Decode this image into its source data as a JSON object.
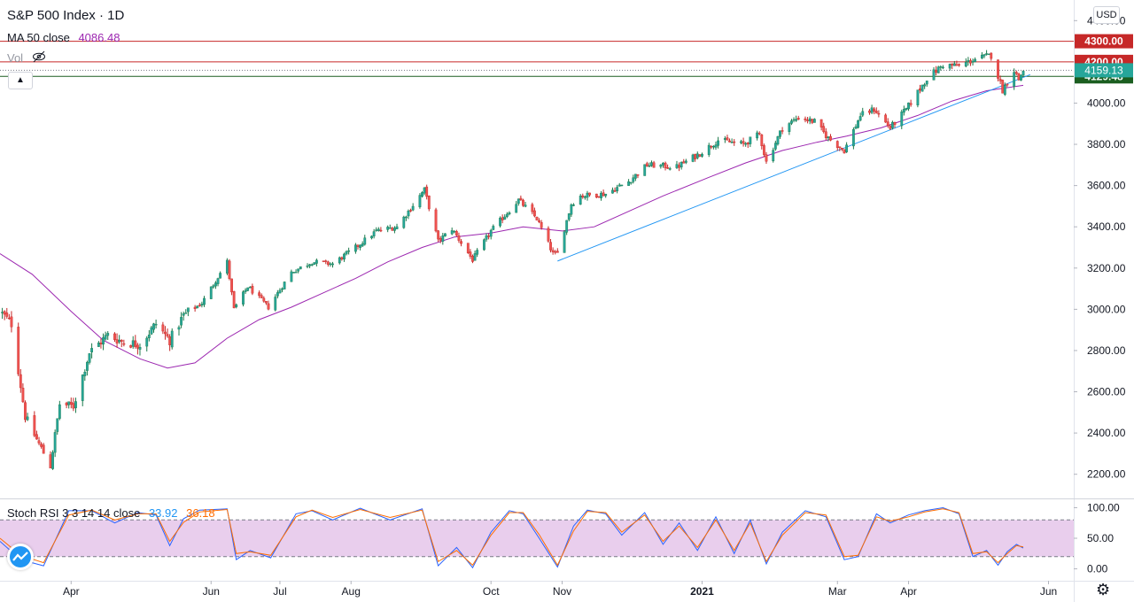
{
  "header": {
    "title": "S&P 500 Index · 1D",
    "ma_label": "MA 50 close",
    "ma_value": "4086.48",
    "vol_label": "Vol",
    "currency": "USD"
  },
  "stoch": {
    "label": "Stoch RSI 3 3 14 14 close",
    "k_value": "33.92",
    "d_value": "36.18"
  },
  "colors": {
    "up": "#26a69a",
    "down": "#ef5350",
    "ma": "#9c27b0",
    "trendline": "#2196f3",
    "hline_red": "#c62828",
    "hline_green": "#1b5e20",
    "last_price": "#26a69a",
    "stoch_k": "#2962ff",
    "stoch_d": "#ff6d00",
    "stoch_band": "#e1bee7"
  },
  "icons": [
    "eye-off-icon",
    "chevron-up-icon",
    "tradingview-logo-icon",
    "settings-gear-icon"
  ],
  "chart_data": [
    {
      "type": "candlestick",
      "title": "S&P 500 Index · 1D",
      "y_ticks": [
        2200,
        2400,
        2600,
        2800,
        3000,
        3200,
        3400,
        3600,
        3800,
        4000,
        4200,
        4400
      ],
      "y_tick_labels": [
        "2200.00",
        "2400.00",
        "2600.00",
        "2800.00",
        "3000.00",
        "3200.00",
        "3400.00",
        "3600.00",
        "3800.00",
        "4000.00",
        "4200.00",
        "4400.00"
      ],
      "ylim": [
        2130,
        4500
      ],
      "x_range": [
        "2020-03-01",
        "2021-06-12"
      ],
      "x_ticks": [
        {
          "date": "2020-04-01",
          "label": "Apr"
        },
        {
          "date": "2020-06-01",
          "label": "Jun"
        },
        {
          "date": "2020-07-01",
          "label": "Jul"
        },
        {
          "date": "2020-08-01",
          "label": "Aug"
        },
        {
          "date": "2020-10-01",
          "label": "Oct"
        },
        {
          "date": "2020-11-01",
          "label": "Nov"
        },
        {
          "date": "2021-01-01",
          "label": "2021"
        },
        {
          "date": "2021-03-01",
          "label": "Mar"
        },
        {
          "date": "2021-04-01",
          "label": "Apr"
        },
        {
          "date": "2021-06-01",
          "label": "Jun"
        }
      ],
      "price_path": [
        [
          "2020-03-01",
          2990
        ],
        [
          "2020-03-06",
          2930
        ],
        [
          "2020-03-12",
          2480
        ],
        [
          "2020-03-16",
          2390
        ],
        [
          "2020-03-23",
          2240
        ],
        [
          "2020-03-27",
          2540
        ],
        [
          "2020-04-02",
          2530
        ],
        [
          "2020-04-09",
          2790
        ],
        [
          "2020-04-17",
          2875
        ],
        [
          "2020-04-24",
          2840
        ],
        [
          "2020-05-01",
          2830
        ],
        [
          "2020-05-08",
          2930
        ],
        [
          "2020-05-14",
          2850
        ],
        [
          "2020-05-20",
          2970
        ],
        [
          "2020-05-28",
          3030
        ],
        [
          "2020-06-08",
          3230
        ],
        [
          "2020-06-11",
          3000
        ],
        [
          "2020-06-17",
          3110
        ],
        [
          "2020-06-26",
          3010
        ],
        [
          "2020-07-06",
          3180
        ],
        [
          "2020-07-15",
          3230
        ],
        [
          "2020-07-24",
          3220
        ],
        [
          "2020-08-03",
          3300
        ],
        [
          "2020-08-12",
          3380
        ],
        [
          "2020-08-21",
          3400
        ],
        [
          "2020-09-02",
          3580
        ],
        [
          "2020-09-08",
          3330
        ],
        [
          "2020-09-14",
          3390
        ],
        [
          "2020-09-23",
          3240
        ],
        [
          "2020-10-01",
          3380
        ],
        [
          "2020-10-09",
          3480
        ],
        [
          "2020-10-13",
          3530
        ],
        [
          "2020-10-21",
          3440
        ],
        [
          "2020-10-28",
          3270
        ],
        [
          "2020-10-30",
          3270
        ],
        [
          "2020-11-05",
          3510
        ],
        [
          "2020-11-09",
          3550
        ],
        [
          "2020-11-20",
          3560
        ],
        [
          "2020-11-30",
          3620
        ],
        [
          "2020-12-08",
          3700
        ],
        [
          "2020-12-21",
          3690
        ],
        [
          "2020-12-31",
          3756
        ],
        [
          "2021-01-08",
          3820
        ],
        [
          "2021-01-19",
          3800
        ],
        [
          "2021-01-26",
          3850
        ],
        [
          "2021-01-29",
          3714
        ],
        [
          "2021-02-05",
          3880
        ],
        [
          "2021-02-12",
          3930
        ],
        [
          "2021-02-19",
          3910
        ],
        [
          "2021-02-25",
          3830
        ],
        [
          "2021-03-04",
          3770
        ],
        [
          "2021-03-11",
          3940
        ],
        [
          "2021-03-17",
          3970
        ],
        [
          "2021-03-24",
          3880
        ],
        [
          "2021-03-31",
          3970
        ],
        [
          "2021-04-09",
          4120
        ],
        [
          "2021-04-16",
          4185
        ],
        [
          "2021-04-23",
          4180
        ],
        [
          "2021-04-29",
          4210
        ],
        [
          "2021-05-07",
          4232
        ],
        [
          "2021-05-12",
          4063
        ],
        [
          "2021-05-17",
          4160
        ],
        [
          "2021-05-19",
          4115
        ],
        [
          "2021-05-21",
          4159
        ]
      ],
      "ma50": [
        [
          "2020-03-01",
          3270
        ],
        [
          "2020-03-15",
          3170
        ],
        [
          "2020-04-01",
          2990
        ],
        [
          "2020-04-15",
          2850
        ],
        [
          "2020-05-01",
          2760
        ],
        [
          "2020-05-13",
          2715
        ],
        [
          "2020-05-25",
          2740
        ],
        [
          "2020-06-08",
          2860
        ],
        [
          "2020-06-22",
          2950
        ],
        [
          "2020-07-06",
          3010
        ],
        [
          "2020-07-20",
          3080
        ],
        [
          "2020-08-03",
          3150
        ],
        [
          "2020-08-17",
          3230
        ],
        [
          "2020-09-01",
          3300
        ],
        [
          "2020-09-15",
          3350
        ],
        [
          "2020-10-01",
          3370
        ],
        [
          "2020-10-15",
          3400
        ],
        [
          "2020-11-01",
          3380
        ],
        [
          "2020-11-15",
          3400
        ],
        [
          "2020-12-01",
          3480
        ],
        [
          "2020-12-15",
          3550
        ],
        [
          "2021-01-04",
          3640
        ],
        [
          "2021-01-20",
          3710
        ],
        [
          "2021-02-05",
          3770
        ],
        [
          "2021-02-20",
          3810
        ],
        [
          "2021-03-05",
          3840
        ],
        [
          "2021-03-20",
          3880
        ],
        [
          "2021-04-05",
          3940
        ],
        [
          "2021-04-20",
          4010
        ],
        [
          "2021-05-05",
          4060
        ],
        [
          "2021-05-21",
          4086
        ]
      ],
      "trendline": [
        [
          "2020-10-30",
          3234
        ],
        [
          "2021-05-24",
          4138
        ]
      ],
      "horizontal_levels": [
        {
          "value": 4300.0,
          "label": "4300.00",
          "style": "solid",
          "color": "#c62828"
        },
        {
          "value": 4200.0,
          "label": "4200.00",
          "style": "solid",
          "color": "#c62828"
        },
        {
          "value": 4129.48,
          "label": "4129.48",
          "style": "solid",
          "color": "#1b5e20"
        }
      ],
      "last_price": {
        "value": 4159.13,
        "label": "4159.13"
      },
      "indicators": [
        {
          "name": "MA 50 close",
          "value": 4086.48
        }
      ]
    },
    {
      "type": "line",
      "title": "Stoch RSI 3 3 14 14 close",
      "y_ticks": [
        0,
        50,
        100
      ],
      "y_tick_labels": [
        "0.00",
        "50.00",
        "100.00"
      ],
      "band": [
        20,
        80
      ],
      "ylim": [
        -5,
        105
      ],
      "series": [
        {
          "name": "K",
          "values": [
            [
              "2020-03-01",
              45
            ],
            [
              "2020-03-10",
              15
            ],
            [
              "2020-03-20",
              5
            ],
            [
              "2020-03-31",
              95
            ],
            [
              "2020-04-10",
              95
            ],
            [
              "2020-04-20",
              75
            ],
            [
              "2020-04-30",
              92
            ],
            [
              "2020-05-08",
              88
            ],
            [
              "2020-05-14",
              38
            ],
            [
              "2020-05-20",
              82
            ],
            [
              "2020-05-27",
              96
            ],
            [
              "2020-06-08",
              98
            ],
            [
              "2020-06-12",
              15
            ],
            [
              "2020-06-18",
              30
            ],
            [
              "2020-06-27",
              18
            ],
            [
              "2020-07-08",
              90
            ],
            [
              "2020-07-15",
              95
            ],
            [
              "2020-07-24",
              80
            ],
            [
              "2020-08-05",
              99
            ],
            [
              "2020-08-18",
              80
            ],
            [
              "2020-09-01",
              98
            ],
            [
              "2020-09-08",
              5
            ],
            [
              "2020-09-16",
              35
            ],
            [
              "2020-09-23",
              2
            ],
            [
              "2020-10-01",
              60
            ],
            [
              "2020-10-09",
              95
            ],
            [
              "2020-10-15",
              90
            ],
            [
              "2020-10-22",
              50
            ],
            [
              "2020-10-30",
              3
            ],
            [
              "2020-11-06",
              70
            ],
            [
              "2020-11-12",
              96
            ],
            [
              "2020-11-20",
              90
            ],
            [
              "2020-11-27",
              55
            ],
            [
              "2020-12-07",
              92
            ],
            [
              "2020-12-15",
              40
            ],
            [
              "2020-12-22",
              75
            ],
            [
              "2020-12-30",
              30
            ],
            [
              "2021-01-07",
              85
            ],
            [
              "2021-01-15",
              25
            ],
            [
              "2021-01-22",
              80
            ],
            [
              "2021-01-29",
              8
            ],
            [
              "2021-02-05",
              60
            ],
            [
              "2021-02-15",
              95
            ],
            [
              "2021-02-24",
              85
            ],
            [
              "2021-03-04",
              15
            ],
            [
              "2021-03-10",
              20
            ],
            [
              "2021-03-18",
              90
            ],
            [
              "2021-03-24",
              75
            ],
            [
              "2021-04-01",
              88
            ],
            [
              "2021-04-08",
              95
            ],
            [
              "2021-04-16",
              100
            ],
            [
              "2021-04-23",
              90
            ],
            [
              "2021-04-29",
              20
            ],
            [
              "2021-05-05",
              30
            ],
            [
              "2021-05-10",
              6
            ],
            [
              "2021-05-14",
              28
            ],
            [
              "2021-05-18",
              40
            ],
            [
              "2021-05-21",
              34
            ]
          ]
        },
        {
          "name": "D",
          "values": [
            [
              "2020-03-01",
              50
            ],
            [
              "2020-03-10",
              22
            ],
            [
              "2020-03-20",
              10
            ],
            [
              "2020-03-31",
              88
            ],
            [
              "2020-04-10",
              96
            ],
            [
              "2020-04-20",
              80
            ],
            [
              "2020-04-30",
              90
            ],
            [
              "2020-05-08",
              90
            ],
            [
              "2020-05-14",
              45
            ],
            [
              "2020-05-20",
              76
            ],
            [
              "2020-05-27",
              93
            ],
            [
              "2020-06-08",
              97
            ],
            [
              "2020-06-12",
              25
            ],
            [
              "2020-06-18",
              28
            ],
            [
              "2020-06-27",
              22
            ],
            [
              "2020-07-08",
              85
            ],
            [
              "2020-07-15",
              96
            ],
            [
              "2020-07-24",
              84
            ],
            [
              "2020-08-05",
              97
            ],
            [
              "2020-08-18",
              84
            ],
            [
              "2020-09-01",
              96
            ],
            [
              "2020-09-08",
              12
            ],
            [
              "2020-09-16",
              30
            ],
            [
              "2020-09-23",
              6
            ],
            [
              "2020-10-01",
              55
            ],
            [
              "2020-10-09",
              92
            ],
            [
              "2020-10-15",
              92
            ],
            [
              "2020-10-22",
              56
            ],
            [
              "2020-10-30",
              6
            ],
            [
              "2020-11-06",
              62
            ],
            [
              "2020-11-12",
              94
            ],
            [
              "2020-11-20",
              92
            ],
            [
              "2020-11-27",
              60
            ],
            [
              "2020-12-07",
              88
            ],
            [
              "2020-12-15",
              45
            ],
            [
              "2020-12-22",
              70
            ],
            [
              "2020-12-30",
              35
            ],
            [
              "2021-01-07",
              80
            ],
            [
              "2021-01-15",
              30
            ],
            [
              "2021-01-22",
              75
            ],
            [
              "2021-01-29",
              12
            ],
            [
              "2021-02-05",
              55
            ],
            [
              "2021-02-15",
              92
            ],
            [
              "2021-02-24",
              88
            ],
            [
              "2021-03-04",
              20
            ],
            [
              "2021-03-10",
              22
            ],
            [
              "2021-03-18",
              85
            ],
            [
              "2021-03-24",
              78
            ],
            [
              "2021-04-01",
              85
            ],
            [
              "2021-04-08",
              93
            ],
            [
              "2021-04-16",
              98
            ],
            [
              "2021-04-23",
              92
            ],
            [
              "2021-04-29",
              25
            ],
            [
              "2021-05-05",
              28
            ],
            [
              "2021-05-10",
              10
            ],
            [
              "2021-05-14",
              25
            ],
            [
              "2021-05-18",
              38
            ],
            [
              "2021-05-21",
              36
            ]
          ]
        }
      ],
      "last_values": {
        "K": "33.92",
        "D": "36.18"
      }
    }
  ]
}
